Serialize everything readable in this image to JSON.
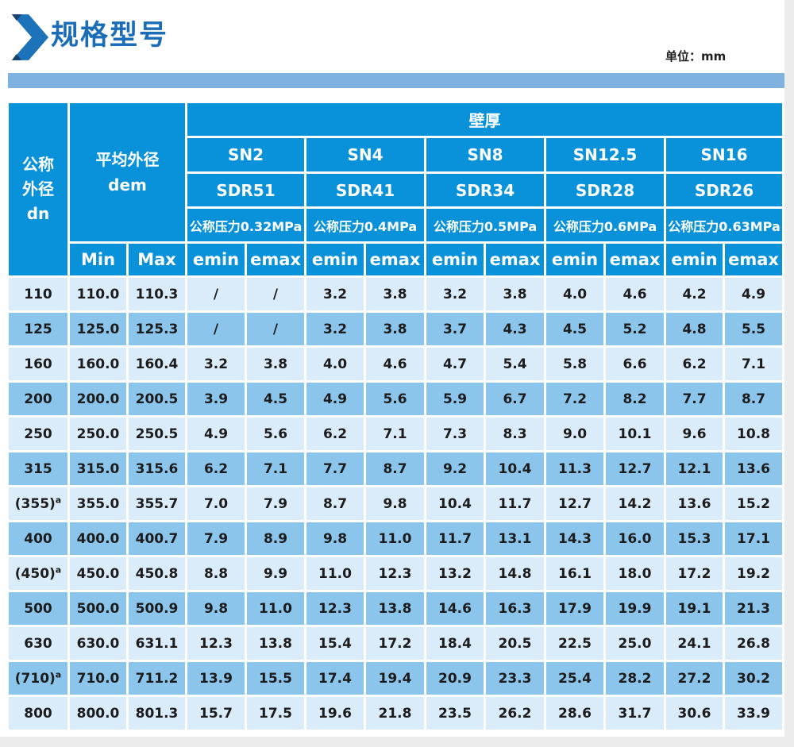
{
  "colors": {
    "header_bg": "#0992da",
    "row_light": "#daebf9",
    "row_dark": "#8cc5ec",
    "strip": "#7fb2de",
    "title": "#1a6db6",
    "data_text": "#1c1c1c"
  },
  "header_bar": {
    "title": "规格型号",
    "unit": "单位：mm"
  },
  "table": {
    "corner": {
      "line1": "公称",
      "line2": "外径",
      "line3": "dn"
    },
    "dem": {
      "line1": "平均外径",
      "line2": "dem"
    },
    "wall": "壁厚",
    "min": "Min",
    "max": "Max",
    "emin": "emin",
    "emax": "emax",
    "groups": [
      {
        "sn": "SN2",
        "sdr": "SDR51",
        "pressure": "公称压力0.32MPa"
      },
      {
        "sn": "SN4",
        "sdr": "SDR41",
        "pressure": "公称压力0.4MPa"
      },
      {
        "sn": "SN8",
        "sdr": "SDR34",
        "pressure": "公称压力0.5MPa"
      },
      {
        "sn": "SN12.5",
        "sdr": "SDR28",
        "pressure": "公称压力0.6MPa"
      },
      {
        "sn": "SN16",
        "sdr": "SDR26",
        "pressure": "公称压力0.63MPa"
      }
    ],
    "rows": [
      {
        "dn": "110",
        "sup": "",
        "min": "110.0",
        "max": "110.3",
        "values": [
          "/",
          "/",
          "3.2",
          "3.8",
          "3.2",
          "3.8",
          "4.0",
          "4.6",
          "4.2",
          "4.9"
        ]
      },
      {
        "dn": "125",
        "sup": "",
        "min": "125.0",
        "max": "125.3",
        "values": [
          "/",
          "/",
          "3.2",
          "3.8",
          "3.7",
          "4.3",
          "4.5",
          "5.2",
          "4.8",
          "5.5"
        ]
      },
      {
        "dn": "160",
        "sup": "",
        "min": "160.0",
        "max": "160.4",
        "values": [
          "3.2",
          "3.8",
          "4.0",
          "4.6",
          "4.7",
          "5.4",
          "5.8",
          "6.6",
          "6.2",
          "7.1"
        ]
      },
      {
        "dn": "200",
        "sup": "",
        "min": "200.0",
        "max": "200.5",
        "values": [
          "3.9",
          "4.5",
          "4.9",
          "5.6",
          "5.9",
          "6.7",
          "7.2",
          "8.2",
          "7.7",
          "8.7"
        ]
      },
      {
        "dn": "250",
        "sup": "",
        "min": "250.0",
        "max": "250.5",
        "values": [
          "4.9",
          "5.6",
          "6.2",
          "7.1",
          "7.3",
          "8.3",
          "9.0",
          "10.1",
          "9.6",
          "10.8"
        ]
      },
      {
        "dn": "315",
        "sup": "",
        "min": "315.0",
        "max": "315.6",
        "values": [
          "6.2",
          "7.1",
          "7.7",
          "8.7",
          "9.2",
          "10.4",
          "11.3",
          "12.7",
          "12.1",
          "13.6"
        ]
      },
      {
        "dn": "(355)",
        "sup": "a",
        "min": "355.0",
        "max": "355.7",
        "values": [
          "7.0",
          "7.9",
          "8.7",
          "9.8",
          "10.4",
          "11.7",
          "12.7",
          "14.2",
          "13.6",
          "15.2"
        ]
      },
      {
        "dn": "400",
        "sup": "",
        "min": "400.0",
        "max": "400.7",
        "values": [
          "7.9",
          "8.9",
          "9.8",
          "11.0",
          "11.7",
          "13.1",
          "14.3",
          "16.0",
          "15.3",
          "17.1"
        ]
      },
      {
        "dn": "(450)",
        "sup": "a",
        "min": "450.0",
        "max": "450.8",
        "values": [
          "8.8",
          "9.9",
          "11.0",
          "12.3",
          "13.2",
          "14.8",
          "16.1",
          "18.0",
          "17.2",
          "19.2"
        ]
      },
      {
        "dn": "500",
        "sup": "",
        "min": "500.0",
        "max": "500.9",
        "values": [
          "9.8",
          "11.0",
          "12.3",
          "13.8",
          "14.6",
          "16.3",
          "17.9",
          "19.9",
          "19.1",
          "21.3"
        ]
      },
      {
        "dn": "630",
        "sup": "",
        "min": "630.0",
        "max": "631.1",
        "values": [
          "12.3",
          "13.8",
          "15.4",
          "17.2",
          "18.4",
          "20.5",
          "22.5",
          "25.0",
          "24.1",
          "26.8"
        ]
      },
      {
        "dn": "(710)",
        "sup": "a",
        "min": "710.0",
        "max": "711.2",
        "values": [
          "13.9",
          "15.5",
          "17.4",
          "19.4",
          "20.9",
          "23.3",
          "25.4",
          "28.2",
          "27.2",
          "30.2"
        ]
      },
      {
        "dn": "800",
        "sup": "",
        "min": "800.0",
        "max": "801.3",
        "values": [
          "15.7",
          "17.5",
          "19.6",
          "21.8",
          "23.5",
          "26.2",
          "28.6",
          "31.7",
          "30.6",
          "33.9"
        ]
      }
    ]
  }
}
